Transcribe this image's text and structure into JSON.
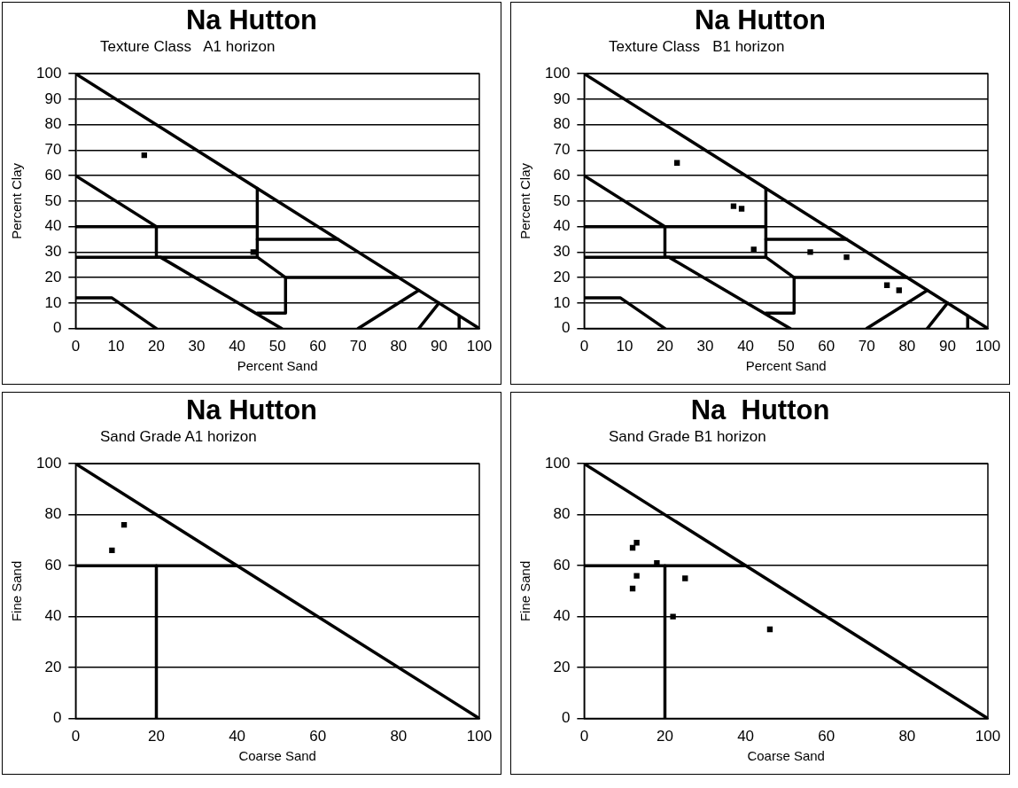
{
  "chart_data": [
    {
      "type": "scatter",
      "title": "Na Hutton",
      "subtitle": "Texture Class   A1 horizon",
      "xlabel": "Percent Sand",
      "ylabel": "Percent Clay",
      "xlim": [
        0,
        100
      ],
      "ylim": [
        0,
        100
      ],
      "xticks": [
        0,
        10,
        20,
        30,
        40,
        50,
        60,
        70,
        80,
        90,
        100
      ],
      "yticks": [
        0,
        10,
        20,
        30,
        40,
        50,
        60,
        70,
        80,
        90,
        100
      ],
      "grid": "y",
      "legend": false,
      "marker": "square",
      "series": [
        {
          "type": "line",
          "marker": "none",
          "color": "#000000",
          "x": [
            0,
            100
          ],
          "values": [
            100,
            0
          ]
        },
        {
          "type": "line",
          "marker": "none",
          "color": "#000000",
          "x": [
            0,
            20,
            20,
            21,
            51
          ],
          "values": [
            60,
            40,
            28,
            28,
            0
          ]
        },
        {
          "type": "line",
          "marker": "none",
          "color": "#000000",
          "x": [
            0,
            45
          ],
          "values": [
            40,
            40
          ]
        },
        {
          "type": "line",
          "marker": "none",
          "color": "#000000",
          "x": [
            45,
            45
          ],
          "values": [
            55,
            28
          ]
        },
        {
          "type": "line",
          "marker": "none",
          "color": "#000000",
          "x": [
            0,
            45,
            52,
            52,
            45
          ],
          "values": [
            28,
            28,
            20,
            6,
            6
          ]
        },
        {
          "type": "line",
          "marker": "none",
          "color": "#000000",
          "x": [
            52,
            80
          ],
          "values": [
            20,
            20
          ]
        },
        {
          "type": "line",
          "marker": "none",
          "color": "#000000",
          "x": [
            45,
            65
          ],
          "values": [
            35,
            35
          ]
        },
        {
          "type": "line",
          "marker": "none",
          "color": "#000000",
          "x": [
            0,
            9,
            20
          ],
          "values": [
            12,
            12,
            0
          ]
        },
        {
          "type": "line",
          "marker": "none",
          "color": "#000000",
          "x": [
            70,
            85
          ],
          "values": [
            0,
            15
          ]
        },
        {
          "type": "line",
          "marker": "none",
          "color": "#000000",
          "x": [
            85,
            90
          ],
          "values": [
            0,
            10
          ]
        },
        {
          "type": "line",
          "marker": "none",
          "color": "#000000",
          "x": [
            95,
            95
          ],
          "values": [
            5,
            0
          ]
        },
        {
          "color": "#000000",
          "x": [
            17,
            44
          ],
          "values": [
            68,
            30
          ]
        }
      ]
    },
    {
      "type": "scatter",
      "title": "Na Hutton",
      "subtitle": "Texture Class   B1 horizon",
      "xlabel": "Percent Sand",
      "ylabel": "Percent Clay",
      "xlim": [
        0,
        100
      ],
      "ylim": [
        0,
        100
      ],
      "xticks": [
        0,
        10,
        20,
        30,
        40,
        50,
        60,
        70,
        80,
        90,
        100
      ],
      "yticks": [
        0,
        10,
        20,
        30,
        40,
        50,
        60,
        70,
        80,
        90,
        100
      ],
      "grid": "y",
      "legend": false,
      "marker": "square",
      "series": [
        {
          "type": "line",
          "marker": "none",
          "color": "#000000",
          "x": [
            0,
            100
          ],
          "values": [
            100,
            0
          ]
        },
        {
          "type": "line",
          "marker": "none",
          "color": "#000000",
          "x": [
            0,
            20,
            20,
            21,
            51
          ],
          "values": [
            60,
            40,
            28,
            28,
            0
          ]
        },
        {
          "type": "line",
          "marker": "none",
          "color": "#000000",
          "x": [
            0,
            45
          ],
          "values": [
            40,
            40
          ]
        },
        {
          "type": "line",
          "marker": "none",
          "color": "#000000",
          "x": [
            45,
            45
          ],
          "values": [
            55,
            28
          ]
        },
        {
          "type": "line",
          "marker": "none",
          "color": "#000000",
          "x": [
            0,
            45,
            52,
            52,
            45
          ],
          "values": [
            28,
            28,
            20,
            6,
            6
          ]
        },
        {
          "type": "line",
          "marker": "none",
          "color": "#000000",
          "x": [
            52,
            80
          ],
          "values": [
            20,
            20
          ]
        },
        {
          "type": "line",
          "marker": "none",
          "color": "#000000",
          "x": [
            45,
            65
          ],
          "values": [
            35,
            35
          ]
        },
        {
          "type": "line",
          "marker": "none",
          "color": "#000000",
          "x": [
            0,
            9,
            20
          ],
          "values": [
            12,
            12,
            0
          ]
        },
        {
          "type": "line",
          "marker": "none",
          "color": "#000000",
          "x": [
            70,
            85
          ],
          "values": [
            0,
            15
          ]
        },
        {
          "type": "line",
          "marker": "none",
          "color": "#000000",
          "x": [
            85,
            90
          ],
          "values": [
            0,
            10
          ]
        },
        {
          "type": "line",
          "marker": "none",
          "color": "#000000",
          "x": [
            95,
            95
          ],
          "values": [
            5,
            0
          ]
        },
        {
          "color": "#000000",
          "x": [
            23,
            37,
            39,
            42,
            56,
            65,
            75,
            78
          ],
          "values": [
            65,
            48,
            47,
            31,
            30,
            28,
            17,
            15
          ]
        }
      ]
    },
    {
      "type": "scatter",
      "title": "Na Hutton",
      "subtitle": "Sand Grade A1 horizon",
      "xlabel": "Coarse Sand",
      "ylabel": "Fine Sand",
      "xlim": [
        0,
        100
      ],
      "ylim": [
        0,
        100
      ],
      "xticks": [
        0,
        20,
        40,
        60,
        80,
        100
      ],
      "yticks": [
        0,
        20,
        40,
        60,
        80,
        100
      ],
      "grid": "y",
      "legend": false,
      "marker": "square",
      "series": [
        {
          "type": "line",
          "marker": "none",
          "color": "#000000",
          "x": [
            0,
            100
          ],
          "values": [
            100,
            0
          ]
        },
        {
          "type": "line",
          "marker": "none",
          "color": "#000000",
          "x": [
            0,
            40
          ],
          "values": [
            60,
            60
          ]
        },
        {
          "type": "line",
          "marker": "none",
          "color": "#000000",
          "x": [
            20,
            20
          ],
          "values": [
            60,
            0
          ]
        },
        {
          "color": "#000000",
          "x": [
            12,
            9
          ],
          "values": [
            76,
            66
          ]
        }
      ]
    },
    {
      "type": "scatter",
      "title": "Na  Hutton",
      "subtitle": "Sand Grade B1 horizon",
      "xlabel": "Coarse Sand",
      "ylabel": "Fine Sand",
      "xlim": [
        0,
        100
      ],
      "ylim": [
        0,
        100
      ],
      "xticks": [
        0,
        20,
        40,
        60,
        80,
        100
      ],
      "yticks": [
        0,
        20,
        40,
        60,
        80,
        100
      ],
      "grid": "y",
      "legend": false,
      "marker": "square",
      "series": [
        {
          "type": "line",
          "marker": "none",
          "color": "#000000",
          "x": [
            0,
            100
          ],
          "values": [
            100,
            0
          ]
        },
        {
          "type": "line",
          "marker": "none",
          "color": "#000000",
          "x": [
            0,
            40
          ],
          "values": [
            60,
            60
          ]
        },
        {
          "type": "line",
          "marker": "none",
          "color": "#000000",
          "x": [
            20,
            20
          ],
          "values": [
            60,
            0
          ]
        },
        {
          "color": "#000000",
          "x": [
            12,
            13,
            18,
            13,
            12,
            25,
            22,
            46
          ],
          "values": [
            67,
            69,
            61,
            56,
            51,
            55,
            40,
            35
          ]
        }
      ]
    }
  ]
}
